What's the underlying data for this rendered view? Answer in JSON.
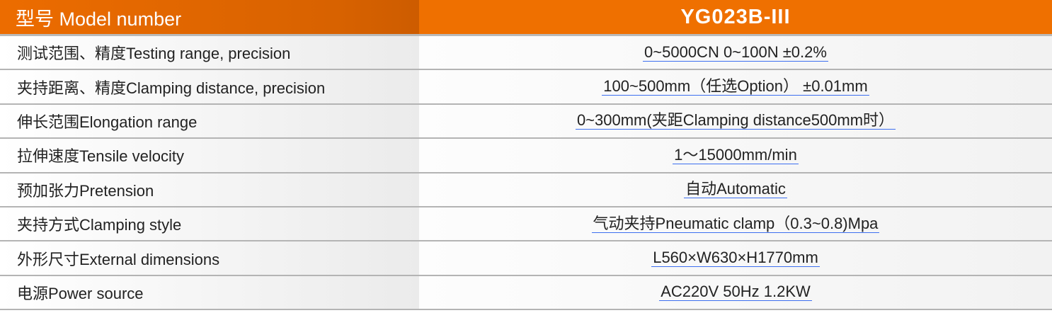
{
  "header": {
    "label": "型号 Model number",
    "value": "YG023B-III"
  },
  "rows": [
    {
      "label": "测试范围、精度Testing range, precision",
      "value": "0~5000CN  0~100N  ±0.2%"
    },
    {
      "label": "夹持距离、精度Clamping distance, precision",
      "value": "100~500mm（任选Option）  ±0.01mm"
    },
    {
      "label": "伸长范围Elongation range",
      "value": "0~300mm(夹距Clamping distance500mm时）"
    },
    {
      "label": "拉伸速度Tensile velocity",
      "value": "1～15000mm/min"
    },
    {
      "label": "预加张力Pretension",
      "value": "自动Automatic"
    },
    {
      "label": "夹持方式Clamping style",
      "value": "气动夹持Pneumatic clamp（0.3~0.8)Mpa"
    },
    {
      "label": "外形尺寸External dimensions",
      "value": "L560×W630×H1770mm"
    },
    {
      "label": "电源Power source",
      "value": "AC220V  50Hz   1.2KW"
    }
  ],
  "colors": {
    "header_left": "#d86200",
    "header_right": "#ef7000",
    "underline": "#3d6ff0"
  }
}
